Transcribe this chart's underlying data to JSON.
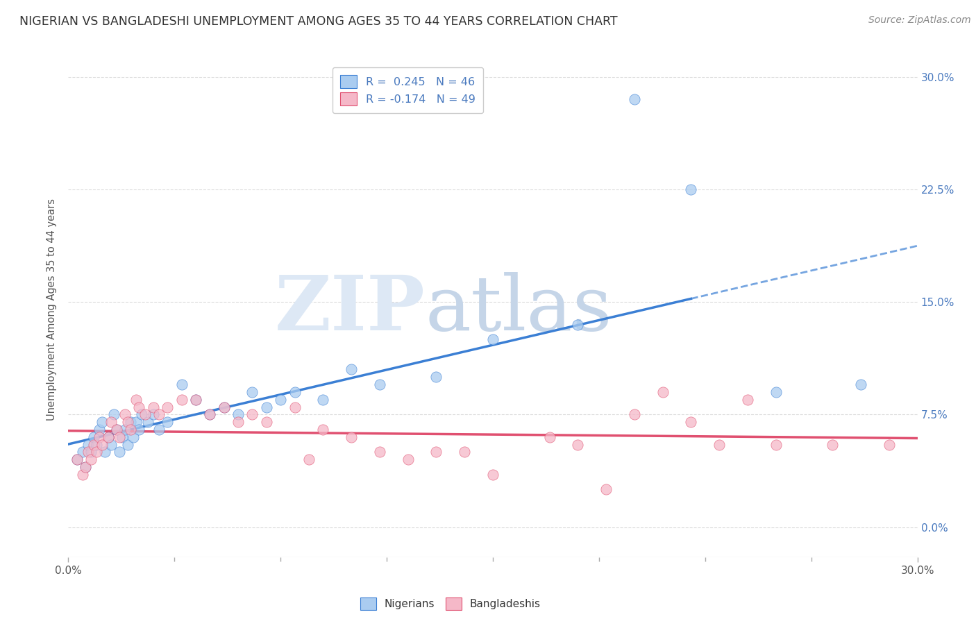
{
  "title": "NIGERIAN VS BANGLADESHI UNEMPLOYMENT AMONG AGES 35 TO 44 YEARS CORRELATION CHART",
  "source": "Source: ZipAtlas.com",
  "ylabel": "Unemployment Among Ages 35 to 44 years",
  "legend_nigerian": "R =  0.245   N = 46",
  "legend_bangladeshi": "R = -0.174   N = 49",
  "nigerian_color": "#aaccf0",
  "bangladeshi_color": "#f5b8c8",
  "trendline_nigerian_color": "#3b7fd4",
  "trendline_bangladeshi_color": "#e05070",
  "background_color": "#ffffff",
  "grid_color": "#cccccc",
  "title_fontsize": 12.5,
  "axis_label_fontsize": 10.5,
  "tick_fontsize": 11,
  "source_fontsize": 10,
  "xlim": [
    0.0,
    30.0
  ],
  "ylim": [
    -2.0,
    31.0
  ],
  "nigerian_points_x": [
    0.3,
    0.5,
    0.6,
    0.7,
    0.8,
    0.9,
    1.0,
    1.1,
    1.2,
    1.3,
    1.4,
    1.5,
    1.6,
    1.7,
    1.8,
    1.9,
    2.0,
    2.1,
    2.2,
    2.3,
    2.4,
    2.5,
    2.6,
    2.8,
    3.0,
    3.2,
    3.5,
    4.0,
    4.5,
    5.0,
    5.5,
    6.0,
    6.5,
    7.0,
    7.5,
    8.0,
    9.0,
    10.0,
    11.0,
    13.0,
    15.0,
    18.0,
    20.0,
    22.0,
    25.0,
    28.0
  ],
  "nigerian_points_y": [
    4.5,
    5.0,
    4.0,
    5.5,
    5.0,
    6.0,
    5.5,
    6.5,
    7.0,
    5.0,
    6.0,
    5.5,
    7.5,
    6.5,
    5.0,
    6.0,
    6.5,
    5.5,
    7.0,
    6.0,
    7.0,
    6.5,
    7.5,
    7.0,
    7.5,
    6.5,
    7.0,
    9.5,
    8.5,
    7.5,
    8.0,
    7.5,
    9.0,
    8.0,
    8.5,
    9.0,
    8.5,
    10.5,
    9.5,
    10.0,
    12.5,
    13.5,
    28.5,
    22.5,
    9.0,
    9.5
  ],
  "bangladeshi_points_x": [
    0.3,
    0.5,
    0.6,
    0.7,
    0.8,
    0.9,
    1.0,
    1.1,
    1.2,
    1.4,
    1.5,
    1.7,
    1.8,
    2.0,
    2.1,
    2.2,
    2.4,
    2.5,
    2.7,
    3.0,
    3.2,
    3.5,
    4.0,
    4.5,
    5.0,
    5.5,
    6.0,
    6.5,
    7.0,
    8.0,
    8.5,
    9.0,
    10.0,
    11.0,
    12.0,
    13.0,
    14.0,
    15.0,
    17.0,
    18.0,
    19.0,
    20.0,
    21.0,
    22.0,
    23.0,
    24.0,
    25.0,
    27.0,
    29.0
  ],
  "bangladeshi_points_y": [
    4.5,
    3.5,
    4.0,
    5.0,
    4.5,
    5.5,
    5.0,
    6.0,
    5.5,
    6.0,
    7.0,
    6.5,
    6.0,
    7.5,
    7.0,
    6.5,
    8.5,
    8.0,
    7.5,
    8.0,
    7.5,
    8.0,
    8.5,
    8.5,
    7.5,
    8.0,
    7.0,
    7.5,
    7.0,
    8.0,
    4.5,
    6.5,
    6.0,
    5.0,
    4.5,
    5.0,
    5.0,
    3.5,
    6.0,
    5.5,
    2.5,
    7.5,
    9.0,
    7.0,
    5.5,
    8.5,
    5.5,
    5.5,
    5.5
  ],
  "ytick_values": [
    0.0,
    7.5,
    15.0,
    22.5,
    30.0
  ],
  "ytick_labels": [
    "0.0%",
    "7.5%",
    "15.0%",
    "22.5%",
    "30.0%"
  ]
}
